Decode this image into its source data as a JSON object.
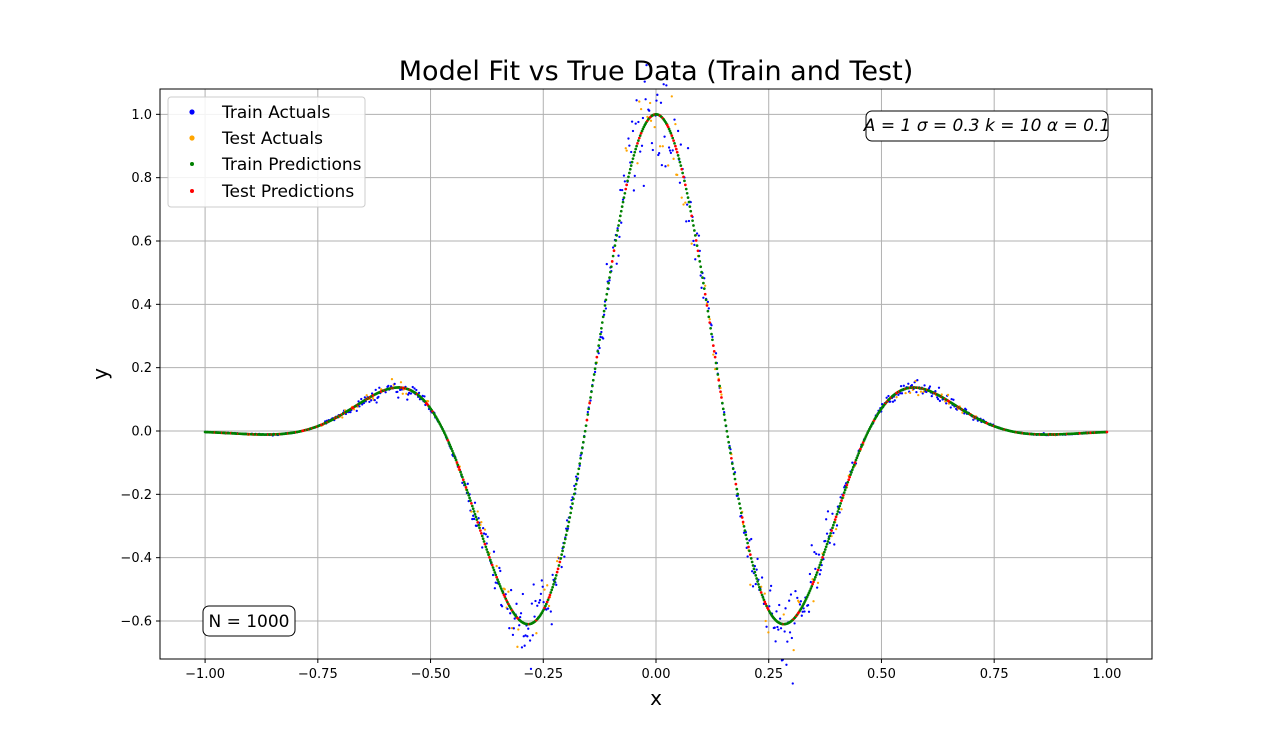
{
  "chart_data": {
    "type": "scatter",
    "title": "Model Fit vs True Data (Train and Test)",
    "xlabel": "x",
    "ylabel": "y",
    "xlim": [
      -1.1,
      1.1
    ],
    "ylim": [
      -0.72,
      1.08
    ],
    "xticks": [
      -1.0,
      -0.75,
      -0.5,
      -0.25,
      0.0,
      0.25,
      0.5,
      0.75,
      1.0
    ],
    "xtick_labels": [
      "−1.00",
      "−0.75",
      "−0.50",
      "−0.25",
      "0.00",
      "0.25",
      "0.50",
      "0.75",
      "1.00"
    ],
    "yticks": [
      -0.6,
      -0.4,
      -0.2,
      0.0,
      0.2,
      0.4,
      0.6,
      0.8,
      1.0
    ],
    "ytick_labels": [
      "−0.6",
      "−0.4",
      "−0.2",
      "0.0",
      "0.2",
      "0.4",
      "0.6",
      "0.8",
      "1.0"
    ],
    "grid": true,
    "legend_position": "top-left",
    "function_params": {
      "A": 1,
      "sigma": 0.3,
      "k": 10,
      "alpha": 0.1
    },
    "params_annotation": "A = 1  σ = 0.3  k = 10  α = 0.1",
    "params_annotation_position": "top-right",
    "count_annotation": "N = 1000",
    "count_annotation_position": "bottom-left",
    "x_range": [
      -1.0,
      1.0
    ],
    "n_points": 1000,
    "series": [
      {
        "name": "Train Actuals",
        "color": "#0000ff",
        "role": "train_actual"
      },
      {
        "name": "Test Actuals",
        "color": "#ffa500",
        "role": "test_actual"
      },
      {
        "name": "Train Predictions",
        "color": "#008000",
        "role": "train_pred"
      },
      {
        "name": "Test Predictions",
        "color": "#ff0000",
        "role": "test_pred"
      }
    ]
  }
}
